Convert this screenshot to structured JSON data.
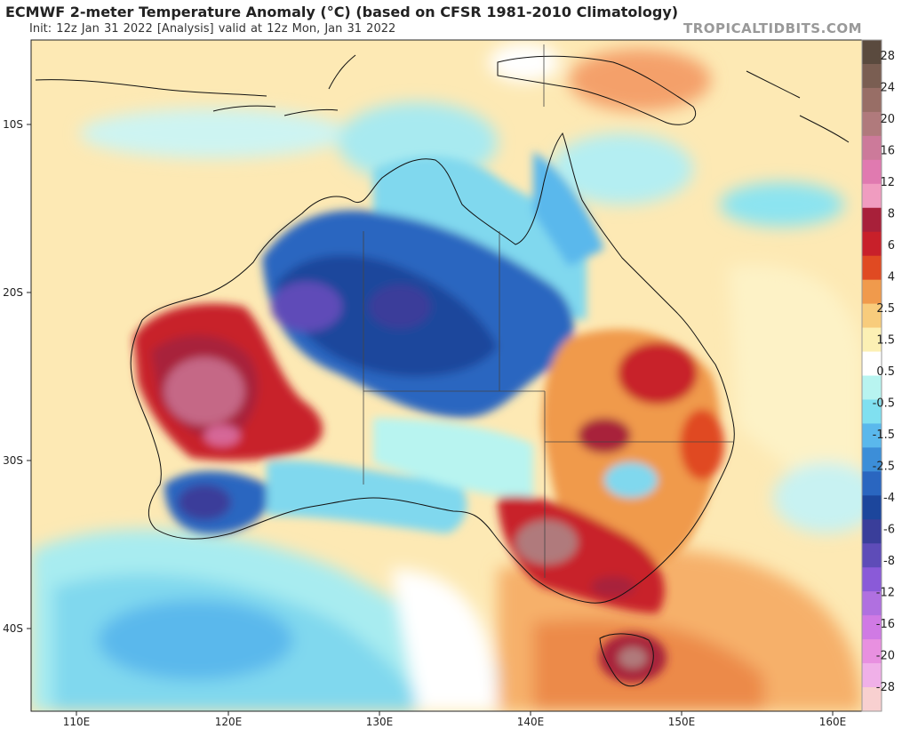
{
  "header": {
    "title": "ECMWF 2-meter Temperature Anomaly (°C) (based on CFSR 1981-2010 Climatology)",
    "subtitle": "Init: 12z Jan 31 2022  [Analysis]   valid at 12z Mon, Jan 31 2022",
    "brand": "TROPICALTIDBITS.COM"
  },
  "map": {
    "lon_labels": [
      "110E",
      "120E",
      "130E",
      "140E",
      "150E",
      "160E"
    ],
    "lat_labels": [
      "10S",
      "20S",
      "30S",
      "40S"
    ]
  },
  "colorbar": {
    "labels": [
      "28",
      "24",
      "20",
      "16",
      "12",
      "8",
      "6",
      "4",
      "2.5",
      "1.5",
      "0.5",
      "-0.5",
      "-1.5",
      "-2.5",
      "-4",
      "-6",
      "-8",
      "-12",
      "-16",
      "-20",
      "-28"
    ],
    "colors": [
      "#5a4a3e",
      "#7a5e52",
      "#986e66",
      "#b07a7c",
      "#cc7a9a",
      "#e07ab0",
      "#f09cc0",
      "#a8203a",
      "#c8202a",
      "#e04a22",
      "#f09a4c",
      "#f8cc7c",
      "#fcf0b4",
      "#ffffff",
      "#b8f4f0",
      "#80e0f0",
      "#5ab8ec",
      "#3c8ed8",
      "#2a66c0",
      "#1c469c",
      "#3a3e9a",
      "#5e4cb8",
      "#8a5ad8",
      "#b070e0",
      "#d07ae4",
      "#e890e0",
      "#f0b0e8",
      "#f8d0d0"
    ]
  }
}
